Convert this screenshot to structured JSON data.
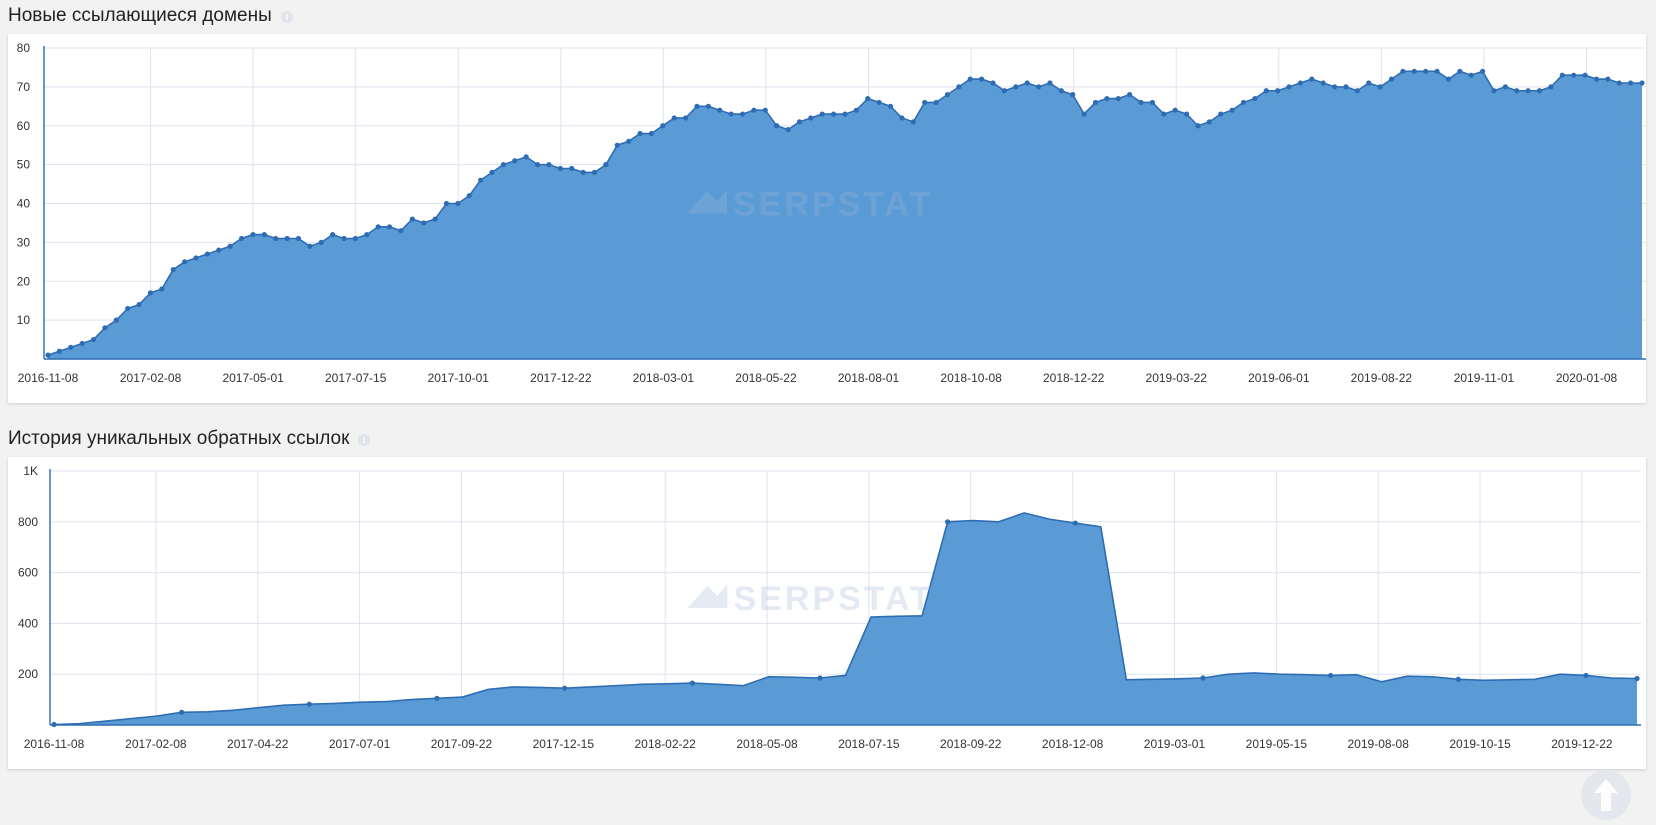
{
  "sections": [
    {
      "title": "Новые ссылающиеся домены",
      "info_icon": "info-icon"
    },
    {
      "title": "История уникальных обратных ссылок",
      "info_icon": "info-icon"
    }
  ],
  "watermark_text": "SERPSTAT",
  "colors": {
    "area": "#5b9bd5",
    "line": "#2e6db4",
    "grid": "#dde3ee",
    "axis": "#2e6db4"
  },
  "scroll_top_icon": "arrow-up-icon",
  "chart_data": [
    {
      "type": "area",
      "title": "Новые ссылающиеся домены",
      "ylim": [
        0,
        80
      ],
      "y_ticks": [
        10,
        20,
        30,
        40,
        50,
        60,
        70,
        80
      ],
      "x_tick_labels": [
        "2016-11-08",
        "2017-02-08",
        "2017-05-01",
        "2017-07-15",
        "2017-10-01",
        "2017-12-22",
        "2018-03-01",
        "2018-05-22",
        "2018-08-01",
        "2018-10-08",
        "2018-12-22",
        "2019-03-22",
        "2019-06-01",
        "2019-08-22",
        "2019-11-01",
        "2020-01-08"
      ],
      "grid": true,
      "markers": true,
      "values": [
        1,
        2,
        3,
        4,
        5,
        8,
        10,
        13,
        14,
        17,
        18,
        23,
        25,
        26,
        27,
        28,
        29,
        31,
        32,
        32,
        31,
        31,
        31,
        29,
        30,
        32,
        31,
        31,
        32,
        34,
        34,
        33,
        36,
        35,
        36,
        40,
        40,
        42,
        46,
        48,
        50,
        51,
        52,
        50,
        50,
        49,
        49,
        48,
        48,
        50,
        55,
        56,
        58,
        58,
        60,
        62,
        62,
        65,
        65,
        64,
        63,
        63,
        64,
        64,
        60,
        59,
        61,
        62,
        63,
        63,
        63,
        64,
        67,
        66,
        65,
        62,
        61,
        66,
        66,
        68,
        70,
        72,
        72,
        71,
        69,
        70,
        71,
        70,
        71,
        69,
        68,
        63,
        66,
        67,
        67,
        68,
        66,
        66,
        63,
        64,
        63,
        60,
        61,
        63,
        64,
        66,
        67,
        69,
        69,
        70,
        71,
        72,
        71,
        70,
        70,
        69,
        71,
        70,
        72,
        74,
        74,
        74,
        74,
        72,
        74,
        73,
        74,
        69,
        70,
        69,
        69,
        69,
        70,
        73,
        73,
        73,
        72,
        72,
        71,
        71,
        71
      ]
    },
    {
      "type": "area",
      "title": "История уникальных обратных ссылок",
      "ylim": [
        0,
        1000
      ],
      "y_ticks": [
        200,
        400,
        600,
        800,
        1000
      ],
      "y_tick_labels": [
        "200",
        "400",
        "600",
        "800",
        "1K"
      ],
      "x_tick_labels": [
        "2016-11-08",
        "2017-02-08",
        "2017-04-22",
        "2017-07-01",
        "2017-09-22",
        "2017-12-15",
        "2018-02-22",
        "2018-05-08",
        "2018-07-15",
        "2018-09-22",
        "2018-12-08",
        "2019-03-01",
        "2019-05-15",
        "2019-08-08",
        "2019-10-15",
        "2019-12-22"
      ],
      "grid": true,
      "markers": true,
      "values": [
        2,
        5,
        15,
        25,
        35,
        50,
        52,
        58,
        68,
        78,
        82,
        85,
        90,
        92,
        100,
        105,
        110,
        140,
        150,
        148,
        145,
        150,
        155,
        160,
        162,
        165,
        160,
        155,
        190,
        188,
        185,
        195,
        425,
        428,
        430,
        800,
        805,
        800,
        835,
        810,
        795,
        780,
        178,
        180,
        182,
        185,
        200,
        205,
        200,
        198,
        195,
        198,
        170,
        192,
        190,
        180,
        176,
        178,
        180,
        200,
        195,
        185,
        183
      ]
    }
  ]
}
